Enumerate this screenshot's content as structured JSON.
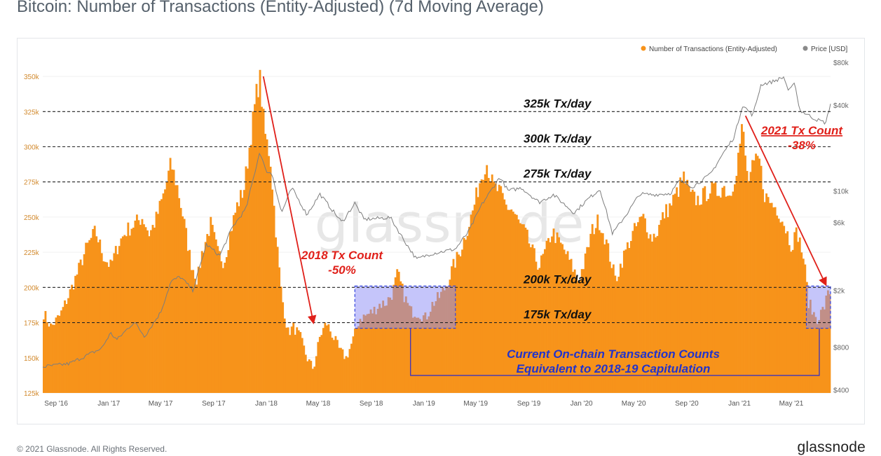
{
  "title": "Bitcoin: Number of Transactions (Entity-Adjusted) (7d Moving Average)",
  "footer": {
    "copyright": "© 2021 Glassnode. All Rights Reserved.",
    "logo": "glassnode"
  },
  "watermark": "glassnode",
  "colors": {
    "tx": "#f7931a",
    "price": "#8a8a8a",
    "red": "#e0201a",
    "blue": "#2233cc",
    "box_fill": "#8c8cf5"
  },
  "chart_data": {
    "type": "bar",
    "x_range": [
      "2016-08-01",
      "2021-07-31"
    ],
    "x_ticks": [
      "Sep '16",
      "Jan '17",
      "May '17",
      "Sep '17",
      "Jan '18",
      "May '18",
      "Sep '18",
      "Jan '19",
      "May '19",
      "Sep '19",
      "Jan '20",
      "May '20",
      "Sep '20",
      "Jan '21",
      "May '21"
    ],
    "x_tick_dates": [
      "2016-09-01",
      "2017-01-01",
      "2017-05-01",
      "2017-09-01",
      "2018-01-01",
      "2018-05-01",
      "2018-09-01",
      "2019-01-01",
      "2019-05-01",
      "2019-09-01",
      "2020-01-01",
      "2020-05-01",
      "2020-09-01",
      "2021-01-01",
      "2021-05-01"
    ],
    "y_left": {
      "min": 125000,
      "max": 360000,
      "ticks": [
        125000,
        150000,
        175000,
        200000,
        225000,
        250000,
        275000,
        300000,
        325000,
        350000
      ],
      "tick_labels": [
        "125k",
        "150k",
        "175k",
        "200k",
        "225k",
        "250k",
        "275k",
        "300k",
        "325k",
        "350k"
      ]
    },
    "y_right": {
      "scale": "log",
      "min": 380,
      "max": 80000,
      "ticks": [
        400,
        800,
        2000,
        6000,
        10000,
        40000,
        80000
      ],
      "tick_labels": [
        "$400",
        "$800",
        "$2k",
        "$6k",
        "$10k",
        "$40k",
        "$80k"
      ]
    },
    "legend": {
      "placement": "top-right",
      "items": [
        {
          "label": "Number of Transactions (Entity-Adjusted)",
          "color": "#f7931a"
        },
        {
          "label": "Price [USD]",
          "color": "#8a8a8a"
        }
      ]
    },
    "series": [
      {
        "name": "Number of Transactions (Entity-Adjusted)",
        "axis": "left",
        "points": [
          [
            "2016-08-01",
            183000
          ],
          [
            "2016-08-20",
            172000
          ],
          [
            "2016-09-10",
            180000
          ],
          [
            "2016-10-01",
            195000
          ],
          [
            "2016-10-20",
            210000
          ],
          [
            "2016-11-10",
            228000
          ],
          [
            "2016-12-01",
            240000
          ],
          [
            "2016-12-20",
            222000
          ],
          [
            "2017-01-05",
            215000
          ],
          [
            "2017-01-25",
            232000
          ],
          [
            "2017-02-10",
            240000
          ],
          [
            "2017-03-01",
            245000
          ],
          [
            "2017-03-20",
            250000
          ],
          [
            "2017-04-05",
            238000
          ],
          [
            "2017-04-20",
            248000
          ],
          [
            "2017-05-10",
            268000
          ],
          [
            "2017-05-25",
            288000
          ],
          [
            "2017-06-10",
            270000
          ],
          [
            "2017-06-25",
            245000
          ],
          [
            "2017-07-10",
            218000
          ],
          [
            "2017-07-25",
            205000
          ],
          [
            "2017-08-05",
            225000
          ],
          [
            "2017-08-25",
            245000
          ],
          [
            "2017-09-10",
            225000
          ],
          [
            "2017-09-25",
            218000
          ],
          [
            "2017-10-10",
            240000
          ],
          [
            "2017-10-25",
            258000
          ],
          [
            "2017-11-10",
            270000
          ],
          [
            "2017-11-25",
            305000
          ],
          [
            "2017-12-10",
            340000
          ],
          [
            "2017-12-17",
            348000
          ],
          [
            "2017-12-28",
            310000
          ],
          [
            "2018-01-10",
            292000
          ],
          [
            "2018-01-25",
            232000
          ],
          [
            "2018-02-05",
            195000
          ],
          [
            "2018-02-20",
            168000
          ],
          [
            "2018-03-05",
            172000
          ],
          [
            "2018-03-20",
            165000
          ],
          [
            "2018-04-05",
            150000
          ],
          [
            "2018-04-20",
            142000
          ],
          [
            "2018-05-05",
            165000
          ],
          [
            "2018-05-20",
            175000
          ],
          [
            "2018-06-05",
            165000
          ],
          [
            "2018-06-20",
            155000
          ],
          [
            "2018-07-05",
            150000
          ],
          [
            "2018-07-20",
            162000
          ],
          [
            "2018-08-05",
            178000
          ],
          [
            "2018-08-20",
            180000
          ],
          [
            "2018-09-05",
            183000
          ],
          [
            "2018-09-20",
            188000
          ],
          [
            "2018-10-05",
            189000
          ],
          [
            "2018-10-20",
            196000
          ],
          [
            "2018-11-01",
            210000
          ],
          [
            "2018-11-15",
            195000
          ],
          [
            "2018-12-01",
            183000
          ],
          [
            "2018-12-20",
            182000
          ],
          [
            "2019-01-05",
            178000
          ],
          [
            "2019-01-20",
            188000
          ],
          [
            "2019-02-05",
            193000
          ],
          [
            "2019-02-20",
            200000
          ],
          [
            "2019-03-10",
            215000
          ],
          [
            "2019-03-25",
            225000
          ],
          [
            "2019-04-10",
            240000
          ],
          [
            "2019-04-25",
            255000
          ],
          [
            "2019-05-10",
            275000
          ],
          [
            "2019-05-25",
            290000
          ],
          [
            "2019-06-10",
            272000
          ],
          [
            "2019-06-25",
            268000
          ],
          [
            "2019-07-10",
            258000
          ],
          [
            "2019-07-25",
            255000
          ],
          [
            "2019-08-10",
            245000
          ],
          [
            "2019-08-25",
            238000
          ],
          [
            "2019-09-10",
            225000
          ],
          [
            "2019-09-25",
            215000
          ],
          [
            "2019-10-10",
            226000
          ],
          [
            "2019-10-25",
            240000
          ],
          [
            "2019-11-10",
            232000
          ],
          [
            "2019-11-25",
            225000
          ],
          [
            "2019-12-10",
            215000
          ],
          [
            "2019-12-25",
            205000
          ],
          [
            "2020-01-10",
            220000
          ],
          [
            "2020-01-25",
            240000
          ],
          [
            "2020-02-10",
            248000
          ],
          [
            "2020-02-25",
            235000
          ],
          [
            "2020-03-10",
            218000
          ],
          [
            "2020-03-20",
            205000
          ],
          [
            "2020-04-05",
            220000
          ],
          [
            "2020-04-20",
            232000
          ],
          [
            "2020-05-10",
            245000
          ],
          [
            "2020-05-25",
            250000
          ],
          [
            "2020-06-10",
            235000
          ],
          [
            "2020-06-25",
            240000
          ],
          [
            "2020-07-10",
            252000
          ],
          [
            "2020-07-25",
            258000
          ],
          [
            "2020-08-10",
            268000
          ],
          [
            "2020-08-25",
            278000
          ],
          [
            "2020-09-10",
            265000
          ],
          [
            "2020-09-25",
            262000
          ],
          [
            "2020-10-10",
            265000
          ],
          [
            "2020-10-25",
            270000
          ],
          [
            "2020-11-10",
            268000
          ],
          [
            "2020-11-25",
            272000
          ],
          [
            "2020-12-10",
            265000
          ],
          [
            "2020-12-25",
            285000
          ],
          [
            "2021-01-08",
            315000
          ],
          [
            "2021-01-20",
            275000
          ],
          [
            "2021-02-01",
            285000
          ],
          [
            "2021-02-15",
            292000
          ],
          [
            "2021-03-01",
            265000
          ],
          [
            "2021-03-15",
            260000
          ],
          [
            "2021-04-01",
            255000
          ],
          [
            "2021-04-15",
            245000
          ],
          [
            "2021-05-01",
            230000
          ],
          [
            "2021-05-15",
            240000
          ],
          [
            "2021-05-30",
            220000
          ],
          [
            "2021-06-10",
            190000
          ],
          [
            "2021-06-20",
            182000
          ],
          [
            "2021-07-01",
            178000
          ],
          [
            "2021-07-15",
            185000
          ],
          [
            "2021-07-25",
            195000
          ],
          [
            "2021-07-31",
            198000
          ]
        ]
      },
      {
        "name": "Price [USD]",
        "axis": "right",
        "points": [
          [
            "2016-08-01",
            580
          ],
          [
            "2016-10-01",
            610
          ],
          [
            "2016-12-15",
            780
          ],
          [
            "2017-01-05",
            1000
          ],
          [
            "2017-01-20",
            900
          ],
          [
            "2017-03-01",
            1200
          ],
          [
            "2017-03-25",
            950
          ],
          [
            "2017-05-01",
            1400
          ],
          [
            "2017-05-25",
            2300
          ],
          [
            "2017-06-15",
            2500
          ],
          [
            "2017-07-15",
            2000
          ],
          [
            "2017-08-15",
            4200
          ],
          [
            "2017-09-15",
            3500
          ],
          [
            "2017-10-15",
            5600
          ],
          [
            "2017-11-15",
            7500
          ],
          [
            "2017-12-17",
            19000
          ],
          [
            "2017-12-30",
            14000
          ],
          [
            "2018-01-15",
            13000
          ],
          [
            "2018-02-05",
            7000
          ],
          [
            "2018-03-01",
            10500
          ],
          [
            "2018-04-05",
            6800
          ],
          [
            "2018-05-05",
            9500
          ],
          [
            "2018-06-25",
            6000
          ],
          [
            "2018-07-25",
            8200
          ],
          [
            "2018-08-15",
            6300
          ],
          [
            "2018-10-15",
            6500
          ],
          [
            "2018-11-20",
            4300
          ],
          [
            "2018-12-15",
            3300
          ],
          [
            "2019-01-15",
            3600
          ],
          [
            "2019-03-15",
            3900
          ],
          [
            "2019-04-15",
            5200
          ],
          [
            "2019-05-15",
            8000
          ],
          [
            "2019-06-26",
            12500
          ],
          [
            "2019-07-15",
            10000
          ],
          [
            "2019-08-15",
            10500
          ],
          [
            "2019-09-25",
            8300
          ],
          [
            "2019-10-28",
            9400
          ],
          [
            "2019-12-15",
            7000
          ],
          [
            "2020-01-15",
            8700
          ],
          [
            "2020-02-13",
            10300
          ],
          [
            "2020-03-13",
            5000
          ],
          [
            "2020-04-15",
            6900
          ],
          [
            "2020-05-15",
            9500
          ],
          [
            "2020-06-15",
            9400
          ],
          [
            "2020-07-25",
            9600
          ],
          [
            "2020-08-15",
            11800
          ],
          [
            "2020-09-15",
            10700
          ],
          [
            "2020-10-25",
            13000
          ],
          [
            "2020-11-25",
            18500
          ],
          [
            "2020-12-20",
            24000
          ],
          [
            "2021-01-08",
            40000
          ],
          [
            "2021-02-01",
            34000
          ],
          [
            "2021-02-20",
            56000
          ],
          [
            "2021-03-15",
            58000
          ],
          [
            "2021-04-14",
            63000
          ],
          [
            "2021-04-25",
            50000
          ],
          [
            "2021-05-10",
            57000
          ],
          [
            "2021-05-20",
            37000
          ],
          [
            "2021-06-10",
            34000
          ],
          [
            "2021-06-25",
            32000
          ],
          [
            "2021-07-20",
            30000
          ],
          [
            "2021-07-31",
            41000
          ]
        ]
      }
    ],
    "reference_lines": [
      {
        "value": 325000,
        "label": "325k Tx/day"
      },
      {
        "value": 300000,
        "label": "300k Tx/day"
      },
      {
        "value": 275000,
        "label": "275k Tx/day"
      },
      {
        "value": 200000,
        "label": "200k Tx/day"
      },
      {
        "value": 175000,
        "label": "175k Tx/day"
      }
    ],
    "annotations": {
      "tx_2018": {
        "line1": "2018 Tx Count",
        "line2": "-50%",
        "from": [
          "2017-12-25",
          350000
        ],
        "to": [
          "2018-04-20",
          175000
        ]
      },
      "tx_2021": {
        "line1": "2021 Tx Count",
        "line2": "-38%",
        "from": [
          "2021-01-15",
          322000
        ],
        "to": [
          "2021-07-20",
          202000
        ]
      },
      "capitulation": {
        "line1": "Current On-chain Transaction Counts",
        "line2": "Equivalent to 2018-19 Capitulation"
      },
      "boxes": [
        {
          "start": "2018-07-25",
          "end": "2019-03-15",
          "low": 171000,
          "high": 201000
        },
        {
          "start": "2021-06-05",
          "end": "2021-07-31",
          "low": 171000,
          "high": 201000
        }
      ]
    }
  }
}
